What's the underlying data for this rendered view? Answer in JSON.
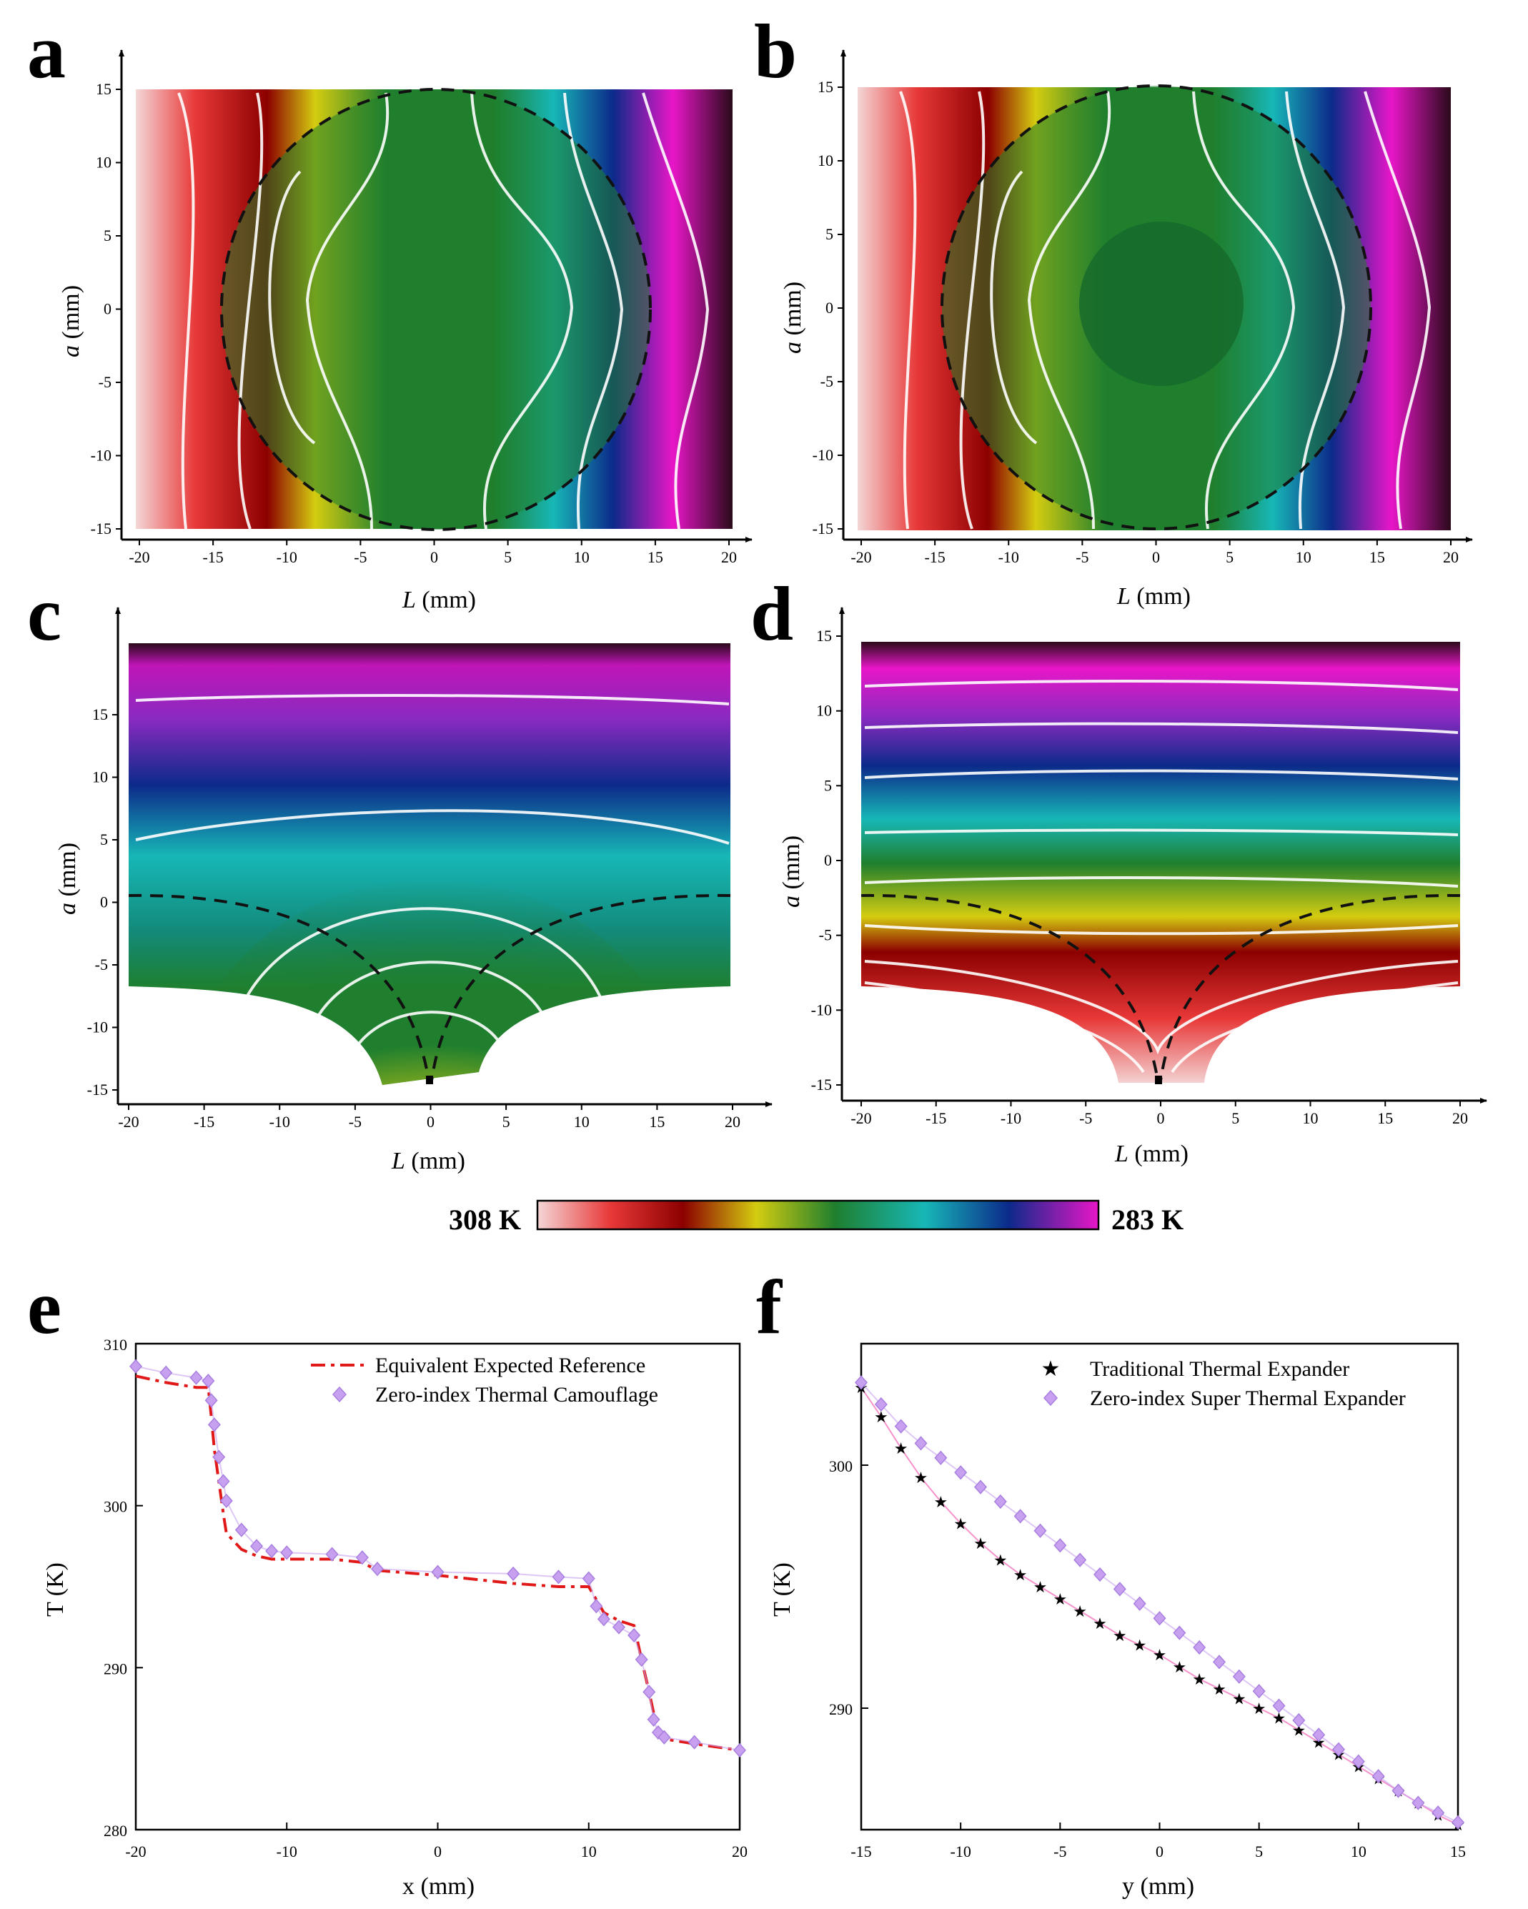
{
  "figure": {
    "colorbar": {
      "min_label": "308 K",
      "max_label": "283 K",
      "colors": [
        "#f4d6d6",
        "#e83838",
        "#8c0000",
        "#d4cc10",
        "#1f7f2e",
        "#17b7b7",
        "#0c2a8a",
        "#e816c8"
      ]
    },
    "maps": [
      {
        "label": "a",
        "xlabel_var": "L",
        "xlabel_unit": " (mm)",
        "ylabel_var": "a",
        "ylabel_unit": " (mm)"
      },
      {
        "label": "b",
        "xlabel_var": "L",
        "xlabel_unit": " (mm)",
        "ylabel_var": "a",
        "ylabel_unit": " (mm)"
      },
      {
        "label": "c",
        "xlabel_var": "L",
        "xlabel_unit": " (mm)",
        "ylabel_var": "a",
        "ylabel_unit": " (mm)"
      },
      {
        "label": "d",
        "xlabel_var": "L",
        "xlabel_unit": " (mm)",
        "ylabel_var": "a",
        "ylabel_unit": " (mm)"
      }
    ],
    "map_x_ticks": [
      "-20",
      "-15",
      "-10",
      "-5",
      "0",
      "5",
      "10",
      "15",
      "20"
    ],
    "map_y_ticks": [
      "15",
      "10",
      "5",
      "0",
      "-5",
      "-10",
      "-15"
    ],
    "panel_e_label": "e",
    "panel_f_label": "f"
  },
  "chart_data": [
    {
      "panel": "e",
      "type": "line",
      "xlabel": "x (mm)",
      "ylabel": "T (K)",
      "xlim": [
        -20,
        20
      ],
      "ylim": [
        280,
        310
      ],
      "xticks": [
        "-20",
        "-10",
        "0",
        "10",
        "20"
      ],
      "yticks": [
        "280",
        "290",
        "300",
        "310"
      ],
      "series": [
        {
          "name": "Equivalent Expected Reference",
          "style": "dash-dot",
          "color": "#e01818",
          "x": [
            -20,
            -18,
            -16,
            -15.2,
            -15,
            -14.8,
            -14.5,
            -14.2,
            -14,
            -13,
            -12,
            -11,
            -10,
            -7,
            -5,
            -4,
            0,
            5,
            8,
            10,
            10.5,
            11,
            12,
            13,
            13.5,
            14,
            14.3,
            14.6,
            15,
            17,
            20
          ],
          "y": [
            308.0,
            307.6,
            307.3,
            307.3,
            305.5,
            303.5,
            301.5,
            299.5,
            298.3,
            297.3,
            296.9,
            296.7,
            296.7,
            296.7,
            296.5,
            296.0,
            295.7,
            295.2,
            295.0,
            295.0,
            294.2,
            293.4,
            292.9,
            292.6,
            290.5,
            288.5,
            287.2,
            286.0,
            285.6,
            285.3,
            284.9
          ]
        },
        {
          "name": "Zero-index Thermal Camouflage",
          "style": "diamond",
          "color": "#c7a1f0",
          "x": [
            -20,
            -18,
            -16,
            -15.2,
            -15,
            -14.8,
            -14.5,
            -14.2,
            -14,
            -13,
            -12,
            -11,
            -10,
            -7,
            -5,
            -4,
            0,
            5,
            8,
            10,
            10.5,
            11,
            12,
            13,
            13.5,
            14,
            14.3,
            14.6,
            15,
            17,
            20
          ],
          "y": [
            308.6,
            308.2,
            307.9,
            307.7,
            306.5,
            305.0,
            303.0,
            301.5,
            300.3,
            298.5,
            297.5,
            297.2,
            297.1,
            297.0,
            296.8,
            296.1,
            295.9,
            295.8,
            295.6,
            295.5,
            293.8,
            293.0,
            292.5,
            292.0,
            290.5,
            288.5,
            286.8,
            286.0,
            285.7,
            285.4,
            284.9
          ]
        }
      ]
    },
    {
      "panel": "f",
      "type": "line",
      "xlabel": "y (mm)",
      "ylabel": "T (K)",
      "xlim": [
        -15,
        15
      ],
      "ylim": [
        285,
        305
      ],
      "xticks": [
        "-15",
        "-10",
        "-5",
        "0",
        "5",
        "10",
        "15"
      ],
      "yticks": [
        "290",
        "300"
      ],
      "series": [
        {
          "name": "Traditional Thermal Expander",
          "style": "star",
          "color": "#f04aa8",
          "x": [
            -15,
            -14,
            -13,
            -12,
            -11,
            -10,
            -9,
            -8,
            -7,
            -6,
            -5,
            -4,
            -3,
            -2,
            -1,
            0,
            1,
            2,
            3,
            4,
            5,
            6,
            7,
            8,
            9,
            10,
            11,
            12,
            13,
            14,
            15
          ],
          "y": [
            303.2,
            302.0,
            300.7,
            299.5,
            298.5,
            297.6,
            296.8,
            296.1,
            295.5,
            295.0,
            294.5,
            294.0,
            293.5,
            293.0,
            292.6,
            292.2,
            291.7,
            291.2,
            290.8,
            290.4,
            290.0,
            289.6,
            289.1,
            288.6,
            288.1,
            287.6,
            287.1,
            286.6,
            286.1,
            285.6,
            285.2
          ]
        },
        {
          "name": "Zero-index Super Thermal Expander",
          "style": "diamond",
          "color": "#c7a1f0",
          "x": [
            -15,
            -14,
            -13,
            -12,
            -11,
            -10,
            -9,
            -8,
            -7,
            -6,
            -5,
            -4,
            -3,
            -2,
            -1,
            0,
            1,
            2,
            3,
            4,
            5,
            6,
            7,
            8,
            9,
            10,
            11,
            12,
            13,
            14,
            15
          ],
          "y": [
            303.4,
            302.5,
            301.6,
            300.9,
            300.3,
            299.7,
            299.1,
            298.5,
            297.9,
            297.3,
            296.7,
            296.1,
            295.5,
            294.9,
            294.3,
            293.7,
            293.1,
            292.5,
            291.9,
            291.3,
            290.7,
            290.1,
            289.5,
            288.9,
            288.3,
            287.8,
            287.2,
            286.6,
            286.1,
            285.7,
            285.3
          ]
        }
      ]
    }
  ]
}
